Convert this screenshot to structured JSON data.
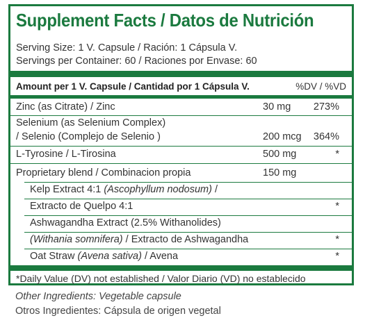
{
  "title": "Supplement Facts / Datos de Nutrición",
  "serving_size": "Serving Size: 1 V. Capsule / Ración: 1 Cápsula V.",
  "servings_per_container": "Servings per Container: 60 / Raciones por Envase: 60",
  "header": {
    "amount": "Amount per 1 V. Capsule / Cantidad por 1 Cápsula V.",
    "dv": "%DV / %VD"
  },
  "rows": [
    {
      "name": "Zinc (as Citrate) / Zinc",
      "amount": "30 mg",
      "dv": "273%"
    },
    {
      "name": "Selenium (as Selenium Complex)",
      "amount": "",
      "dv": ""
    },
    {
      "name": "/ Selenio (Complejo de Selenio )",
      "amount": "200 mcg",
      "dv": "364%"
    },
    {
      "name": "L-Tyrosine / L-Tirosina",
      "amount": "500 mg",
      "dv": "*"
    },
    {
      "name": "Proprietary blend / Combinacion propia",
      "amount": "150 mg",
      "dv": ""
    }
  ],
  "blend": {
    "kelp_prefix": "Kelp Extract 4:1 ",
    "kelp_latin": "(Ascophyllum nodosum)",
    "kelp_suffix": " /",
    "kelp_es": "Extracto de Quelpo 4:1",
    "kelp_dv": "*",
    "ashwa": "Ashwagandha Extract (2.5% Withanolides)",
    "ashwa_latin": "(Withania somnifera)",
    "ashwa_es": " / Extracto de Ashwagandha",
    "ashwa_dv": "*",
    "oat_prefix": "Oat Straw ",
    "oat_latin": "(Avena sativa)",
    "oat_suffix": " / Avena",
    "oat_dv": "*"
  },
  "footnote": "*Daily Value (DV) not established / Valor Diario (VD) no establecido",
  "other_ingredients": "Other Ingredients: Vegetable capsule",
  "otros_ingredientes": "Otros Ingredientes: Cápsula de origen vegetal",
  "colors": {
    "brand_green": "#1b7a3f"
  }
}
